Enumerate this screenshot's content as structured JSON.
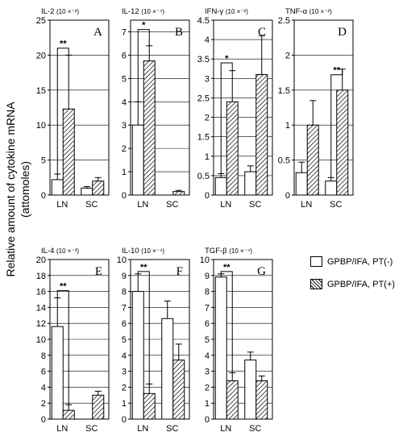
{
  "y_axis_label_line1": "Relative amount of cytokine mRNA",
  "y_axis_label_line2": "(attomoles)",
  "legend": [
    {
      "label": "GPBP/IFA, PT(-)",
      "pattern": "open"
    },
    {
      "label": "GPBP/IFA, PT(+)",
      "pattern": "hatched"
    }
  ],
  "chart_data": [
    {
      "type": "bar",
      "panel": "A",
      "title": "IL-2",
      "scale": "(10 ×⁻²)",
      "categories": [
        "LN",
        "SC"
      ],
      "ylim": [
        0,
        25
      ],
      "yticks": [
        0,
        5,
        10,
        15,
        20,
        25
      ],
      "series": [
        {
          "name": "GPBP/IFA, PT(-)",
          "values": [
            2.2,
            1.0
          ],
          "errors": [
            0.8,
            0.2
          ]
        },
        {
          "name": "GPBP/IFA, PT(+)",
          "values": [
            12.3,
            2.0
          ],
          "errors": [
            7.7,
            0.5
          ]
        }
      ],
      "significance": [
        {
          "category": "LN",
          "label": "**",
          "y": 21
        }
      ]
    },
    {
      "type": "bar",
      "panel": "B",
      "title": "IL-12",
      "scale": "(10 ×⁻⁴)",
      "categories": [
        "LN",
        "SC"
      ],
      "ylim": [
        0,
        7.5
      ],
      "yticks": [
        0,
        1,
        2,
        3,
        4,
        5,
        6,
        7
      ],
      "series": [
        {
          "name": "GPBP/IFA, PT(-)",
          "values": [
            3.0,
            0.0
          ],
          "errors": [
            1.0,
            0
          ]
        },
        {
          "name": "GPBP/IFA, PT(+)",
          "values": [
            5.75,
            0.15
          ],
          "errors": [
            0.65,
            0.05
          ]
        }
      ],
      "significance": [
        {
          "category": "LN",
          "label": "*",
          "y": 7.1
        }
      ]
    },
    {
      "type": "bar",
      "panel": "C",
      "title": "IFN-γ",
      "scale": "(10 ×⁻²)",
      "categories": [
        "LN",
        "SC"
      ],
      "ylim": [
        0,
        4.5
      ],
      "yticks": [
        0,
        0.5,
        1,
        1.5,
        2,
        2.5,
        3,
        3.5,
        4,
        4.5
      ],
      "series": [
        {
          "name": "GPBP/IFA, PT(-)",
          "values": [
            0.45,
            0.6
          ],
          "errors": [
            0.1,
            0.15
          ]
        },
        {
          "name": "GPBP/IFA, PT(+)",
          "values": [
            2.4,
            3.1
          ],
          "errors": [
            0.8,
            1.0
          ]
        }
      ],
      "significance": [
        {
          "category": "LN",
          "label": "*",
          "y": 3.4
        }
      ]
    },
    {
      "type": "bar",
      "panel": "D",
      "title": "TNF-α",
      "scale": "(10 ×⁻²)",
      "categories": [
        "LN",
        "SC"
      ],
      "ylim": [
        0,
        2.5
      ],
      "yticks": [
        0,
        0.5,
        1,
        1.5,
        2,
        2.5
      ],
      "series": [
        {
          "name": "GPBP/IFA, PT(-)",
          "values": [
            0.32,
            0.2
          ],
          "errors": [
            0.15,
            0.05
          ]
        },
        {
          "name": "GPBP/IFA, PT(+)",
          "values": [
            1.0,
            1.5
          ],
          "errors": [
            0.35,
            0.3
          ]
        }
      ],
      "significance": [
        {
          "category": "SC",
          "label": "**",
          "y": 1.72
        }
      ]
    },
    {
      "type": "bar",
      "panel": "E",
      "title": "IL-4",
      "scale": "(10 ×⁻³)",
      "categories": [
        "LN",
        "SC"
      ],
      "ylim": [
        0,
        20
      ],
      "yticks": [
        0,
        2,
        4,
        6,
        8,
        10,
        12,
        14,
        16,
        18,
        20
      ],
      "series": [
        {
          "name": "GPBP/IFA, PT(-)",
          "values": [
            11.6,
            0.0
          ],
          "errors": [
            3.6,
            0
          ]
        },
        {
          "name": "GPBP/IFA, PT(+)",
          "values": [
            1.1,
            3.0
          ],
          "errors": [
            0.7,
            0.5
          ]
        }
      ],
      "significance": [
        {
          "category": "LN",
          "label": "**",
          "y": 16.1
        }
      ]
    },
    {
      "type": "bar",
      "panel": "F",
      "title": "IL-10",
      "scale": "(10 ×⁻⁴)",
      "categories": [
        "LN",
        "SC"
      ],
      "ylim": [
        0,
        10
      ],
      "yticks": [
        0,
        1,
        2,
        3,
        4,
        5,
        6,
        7,
        8,
        9,
        10
      ],
      "series": [
        {
          "name": "GPBP/IFA, PT(-)",
          "values": [
            8.0,
            6.3
          ],
          "errors": [
            1.1,
            1.1
          ]
        },
        {
          "name": "GPBP/IFA, PT(+)",
          "values": [
            1.6,
            3.7
          ],
          "errors": [
            0.6,
            1.0
          ]
        }
      ],
      "significance": [
        {
          "category": "LN",
          "label": "**",
          "y": 9.25
        }
      ]
    },
    {
      "type": "bar",
      "panel": "G",
      "title": "TGF-β",
      "scale": "(10 ×⁻⁴)",
      "categories": [
        "LN",
        "SC"
      ],
      "ylim": [
        0,
        10
      ],
      "yticks": [
        0,
        1,
        2,
        3,
        4,
        5,
        6,
        7,
        8,
        9,
        10
      ],
      "series": [
        {
          "name": "GPBP/IFA, PT(-)",
          "values": [
            8.9,
            3.7
          ],
          "errors": [
            0.2,
            0.5
          ]
        },
        {
          "name": "GPBP/IFA, PT(+)",
          "values": [
            2.4,
            2.4
          ],
          "errors": [
            0.5,
            0.3
          ]
        }
      ],
      "significance": [
        {
          "category": "LN",
          "label": "**",
          "y": 9.25
        }
      ]
    }
  ]
}
